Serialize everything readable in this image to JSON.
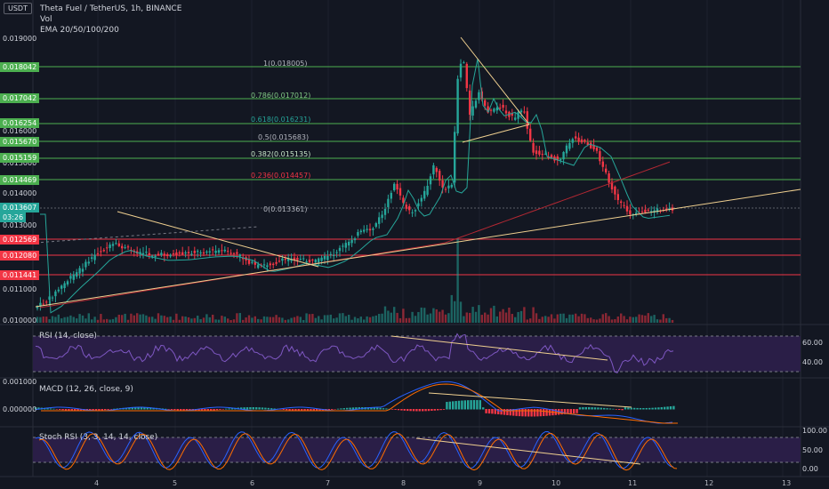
{
  "header": {
    "title": "Theta Fuel / TetherUS, 1h, BINANCE",
    "vol_label": "Vol",
    "ema_label": "EMA 20/50/100/200",
    "currency_badge": "USDT"
  },
  "price_axis": {
    "labels": [
      "0.019000",
      "0.016000",
      "0.015000",
      "0.014000",
      "0.013000",
      "0.011000",
      "0.010000"
    ],
    "price_tags": [
      {
        "text": "0.018042",
        "color": "#4caf50"
      },
      {
        "text": "0.017042",
        "color": "#4caf50"
      },
      {
        "text": "0.016254",
        "color": "#4caf50"
      },
      {
        "text": "0.015670",
        "color": "#4caf50"
      },
      {
        "text": "0.015159",
        "color": "#4caf50"
      },
      {
        "text": "0.014469",
        "color": "#4caf50"
      },
      {
        "text": "0.013607",
        "color": "#26a69a"
      },
      {
        "text": "03:26",
        "color": "#26a69a"
      },
      {
        "text": "0.012569",
        "color": "#f23645"
      },
      {
        "text": "0.012080",
        "color": "#f23645"
      },
      {
        "text": "0.011441",
        "color": "#f23645"
      }
    ]
  },
  "fib_levels": [
    {
      "text": "1(0.018005)",
      "color": "#b2b5be"
    },
    {
      "text": "0.786(0.017012)",
      "color": "#81c784"
    },
    {
      "text": "0.618(0.016231)",
      "color": "#26a69a"
    },
    {
      "text": "0.5(0.015683)",
      "color": "#b2b5be"
    },
    {
      "text": "0.382(0.015135)",
      "color": "#c8e6c9"
    },
    {
      "text": "0.236(0.014457)",
      "color": "#f23645"
    },
    {
      "text": "0(0.013361)",
      "color": "#b2b5be"
    }
  ],
  "indicators": {
    "rsi": {
      "label": "RSI (14, close)",
      "axis": [
        "60.00",
        "40.00"
      ]
    },
    "macd": {
      "label": "MACD (12, 26, close, 9)",
      "axis": [
        "0.001000",
        "0.000000"
      ]
    },
    "stoch": {
      "label": "Stoch RSI (3, 3, 14, 14, close)",
      "axis": [
        "100.00",
        "50.00",
        "0.00"
      ]
    }
  },
  "time_axis": [
    "4",
    "5",
    "6",
    "7",
    "8",
    "9",
    "10",
    "11",
    "12",
    "13"
  ],
  "colors": {
    "up": "#26a69a",
    "down": "#f23645",
    "background": "#131722",
    "fib_green": "#4caf50",
    "trend": "#f0d090"
  }
}
